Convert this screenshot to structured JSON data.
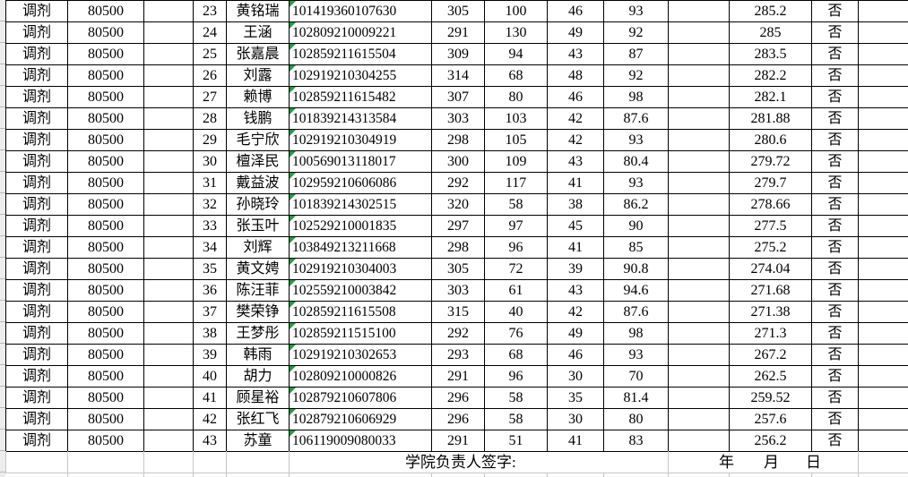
{
  "table": {
    "column_names": [
      "category",
      "major-code",
      "blank-a",
      "rank",
      "name",
      "candidate-id",
      "score-initial",
      "score-written",
      "score-b",
      "score-interview",
      "blank-b",
      "total-score",
      "admitted-flag",
      "blank-c"
    ],
    "rows": [
      [
        "调剂",
        "80500",
        "",
        "23",
        "黄铭瑞",
        "101419360107630",
        "305",
        "100",
        "46",
        "93",
        "",
        "285.2",
        "否",
        ""
      ],
      [
        "调剂",
        "80500",
        "",
        "24",
        "王涵",
        "102809210009221",
        "291",
        "130",
        "49",
        "92",
        "",
        "285",
        "否",
        ""
      ],
      [
        "调剂",
        "80500",
        "",
        "25",
        "张嘉晨",
        "102859211615504",
        "309",
        "94",
        "43",
        "87",
        "",
        "283.5",
        "否",
        ""
      ],
      [
        "调剂",
        "80500",
        "",
        "26",
        "刘露",
        "102919210304255",
        "314",
        "68",
        "48",
        "92",
        "",
        "282.2",
        "否",
        ""
      ],
      [
        "调剂",
        "80500",
        "",
        "27",
        "赖博",
        "102859211615482",
        "307",
        "80",
        "46",
        "98",
        "",
        "282.1",
        "否",
        ""
      ],
      [
        "调剂",
        "80500",
        "",
        "28",
        "钱鹏",
        "101839214313584",
        "303",
        "103",
        "42",
        "87.6",
        "",
        "281.88",
        "否",
        ""
      ],
      [
        "调剂",
        "80500",
        "",
        "29",
        "毛宁欣",
        "102919210304919",
        "298",
        "105",
        "42",
        "93",
        "",
        "280.6",
        "否",
        ""
      ],
      [
        "调剂",
        "80500",
        "",
        "30",
        "檀泽民",
        "100569013118017",
        "300",
        "109",
        "43",
        "80.4",
        "",
        "279.72",
        "否",
        ""
      ],
      [
        "调剂",
        "80500",
        "",
        "31",
        "戴益波",
        "102959210606086",
        "292",
        "117",
        "41",
        "93",
        "",
        "279.7",
        "否",
        ""
      ],
      [
        "调剂",
        "80500",
        "",
        "32",
        "孙晓玲",
        "101839214302515",
        "320",
        "58",
        "38",
        "86.2",
        "",
        "278.66",
        "否",
        ""
      ],
      [
        "调剂",
        "80500",
        "",
        "33",
        "张玉叶",
        "102529210001835",
        "297",
        "97",
        "45",
        "90",
        "",
        "277.5",
        "否",
        ""
      ],
      [
        "调剂",
        "80500",
        "",
        "34",
        "刘辉",
        "103849213211668",
        "298",
        "96",
        "41",
        "85",
        "",
        "275.2",
        "否",
        ""
      ],
      [
        "调剂",
        "80500",
        "",
        "35",
        "黄文娉",
        "102919210304003",
        "305",
        "72",
        "39",
        "90.8",
        "",
        "274.04",
        "否",
        ""
      ],
      [
        "调剂",
        "80500",
        "",
        "36",
        "陈汪菲",
        "102559210003842",
        "303",
        "61",
        "43",
        "94.6",
        "",
        "271.68",
        "否",
        ""
      ],
      [
        "调剂",
        "80500",
        "",
        "37",
        "樊荣铮",
        "102859211615508",
        "315",
        "40",
        "42",
        "87.6",
        "",
        "271.38",
        "否",
        ""
      ],
      [
        "调剂",
        "80500",
        "",
        "38",
        "王梦彤",
        "102859211515100",
        "292",
        "76",
        "49",
        "98",
        "",
        "271.3",
        "否",
        ""
      ],
      [
        "调剂",
        "80500",
        "",
        "39",
        "韩雨",
        "102919210302653",
        "293",
        "68",
        "46",
        "93",
        "",
        "267.2",
        "否",
        ""
      ],
      [
        "调剂",
        "80500",
        "",
        "40",
        "胡力",
        "102809210000826",
        "291",
        "96",
        "30",
        "70",
        "",
        "262.5",
        "否",
        ""
      ],
      [
        "调剂",
        "80500",
        "",
        "41",
        "顾星裕",
        "102879210607806",
        "296",
        "58",
        "35",
        "81.4",
        "",
        "259.52",
        "否",
        ""
      ],
      [
        "调剂",
        "80500",
        "",
        "42",
        "张红飞",
        "102879210606929",
        "296",
        "58",
        "30",
        "80",
        "",
        "257.6",
        "否",
        ""
      ],
      [
        "调剂",
        "80500",
        "",
        "43",
        "苏童",
        "106119009080033",
        "291",
        "51",
        "41",
        "83",
        "",
        "256.2",
        "否",
        ""
      ]
    ]
  },
  "footer": {
    "signature_label": "学院负责人签字:",
    "year_label": "年",
    "month_label": "月",
    "day_label": "日"
  },
  "icons": {
    "id_cell_corner": "number-stored-as-text-indicator"
  },
  "colors": {
    "table_border": "#000000",
    "gridline": "#c6c6c6",
    "row_header_strip": "#ededed",
    "indicator_green": "#1e9e3e"
  }
}
